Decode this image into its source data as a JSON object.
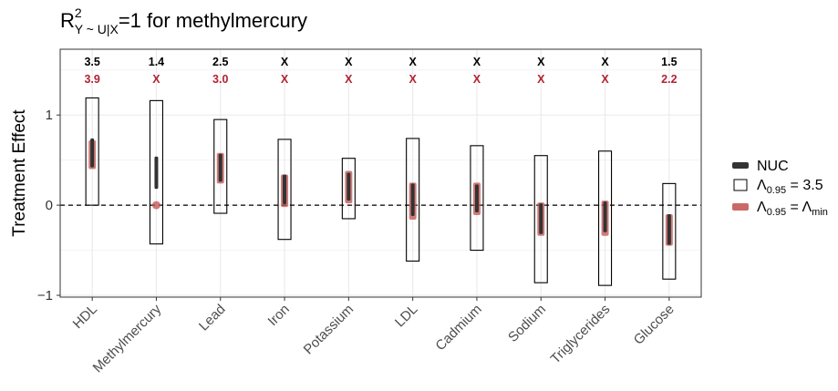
{
  "chart_data": {
    "type": "interval",
    "title_prefix": "R",
    "title_superscript": "2",
    "title_subscript": "Y ~ U|X",
    "title_suffix": "=1 for methylmercury",
    "ylabel": "Treatment Effect",
    "ylim": [
      -1.02,
      1.73
    ],
    "yticks": [
      -1,
      0,
      1
    ],
    "grid": true,
    "reference_line": 0,
    "categories": [
      "HDL",
      "Methylmercury",
      "Lead",
      "Iron",
      "Potassium",
      "LDL",
      "Cadmium",
      "Sodium",
      "Triglycerides",
      "Glucose"
    ],
    "annot_top": [
      "3.5",
      "1.4",
      "2.5",
      "X",
      "X",
      "X",
      "X",
      "X",
      "X",
      "1.5"
    ],
    "annot_bottom": [
      "3.9",
      "X",
      "3.0",
      "X",
      "X",
      "X",
      "X",
      "X",
      "X",
      "2.2"
    ],
    "colors": {
      "nuc": "#333333",
      "lambda_min": "#c0504d",
      "annot_bottom": "#b22234",
      "box": "#000000",
      "grid": "#ebebeb"
    },
    "series": [
      {
        "name": "NUC",
        "intervals": [
          [
            0.42,
            0.74
          ],
          [
            0.18,
            0.54
          ],
          [
            0.26,
            0.57
          ],
          [
            0.01,
            0.34
          ],
          [
            0.05,
            0.36
          ],
          [
            -0.12,
            0.24
          ],
          [
            -0.08,
            0.23
          ],
          [
            -0.32,
            0.02
          ],
          [
            -0.3,
            0.04
          ],
          [
            -0.44,
            -0.1
          ]
        ]
      },
      {
        "name_prefix": "Λ",
        "name_subscript": "0.95",
        "name_suffix": " = 3.5",
        "intervals": [
          [
            0.0,
            1.19
          ],
          [
            -0.43,
            1.16
          ],
          [
            -0.09,
            0.95
          ],
          [
            -0.38,
            0.73
          ],
          [
            -0.15,
            0.52
          ],
          [
            -0.62,
            0.74
          ],
          [
            -0.5,
            0.66
          ],
          [
            -0.86,
            0.55
          ],
          [
            -0.89,
            0.6
          ],
          [
            -0.82,
            0.24
          ]
        ]
      },
      {
        "name_prefix": "Λ",
        "name_subscript": "0.95",
        "name_mid": " = Λ",
        "name_subscript2": "min",
        "intervals": [
          [
            0.4,
            0.72
          ],
          [
            0.0,
            0.0
          ],
          [
            0.24,
            0.58
          ],
          [
            -0.02,
            0.34
          ],
          [
            0.02,
            0.38
          ],
          [
            -0.16,
            0.25
          ],
          [
            -0.11,
            0.25
          ],
          [
            -0.34,
            0.03
          ],
          [
            -0.34,
            0.05
          ],
          [
            -0.45,
            -0.1
          ]
        ]
      }
    ]
  }
}
